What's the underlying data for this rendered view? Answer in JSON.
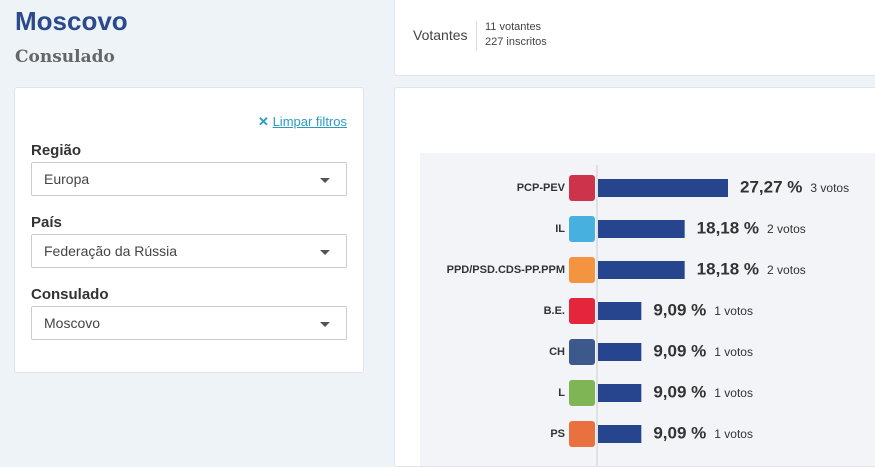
{
  "header": {
    "title": "Moscovo",
    "subtitle": "Consulado"
  },
  "filters": {
    "clear": "Limpar filtros",
    "fields": [
      {
        "label": "Região",
        "value": "Europa"
      },
      {
        "label": "País",
        "value": "Federação da Rússia"
      },
      {
        "label": "Consulado",
        "value": "Moscovo"
      }
    ]
  },
  "summary": {
    "label": "Votantes",
    "voters": "11 votantes",
    "registered": "227 inscritos"
  },
  "chart_data": {
    "type": "bar",
    "categories": [
      "PCP-PEV",
      "IL",
      "PPD/PSD.CDS-PP.PPM",
      "B.E.",
      "CH",
      "L",
      "PS"
    ],
    "values": [
      27.27,
      18.18,
      18.18,
      9.09,
      9.09,
      9.09,
      9.09
    ],
    "value_labels": [
      "27,27 %",
      "18,18 %",
      "18,18 %",
      "9,09 %",
      "9,09 %",
      "9,09 %",
      "9,09 %"
    ],
    "votes": [
      "3 votos",
      "2 votos",
      "2 votos",
      "1 votos",
      "1 votos",
      "1 votos",
      "1 votos"
    ],
    "color": "#27458f"
  }
}
